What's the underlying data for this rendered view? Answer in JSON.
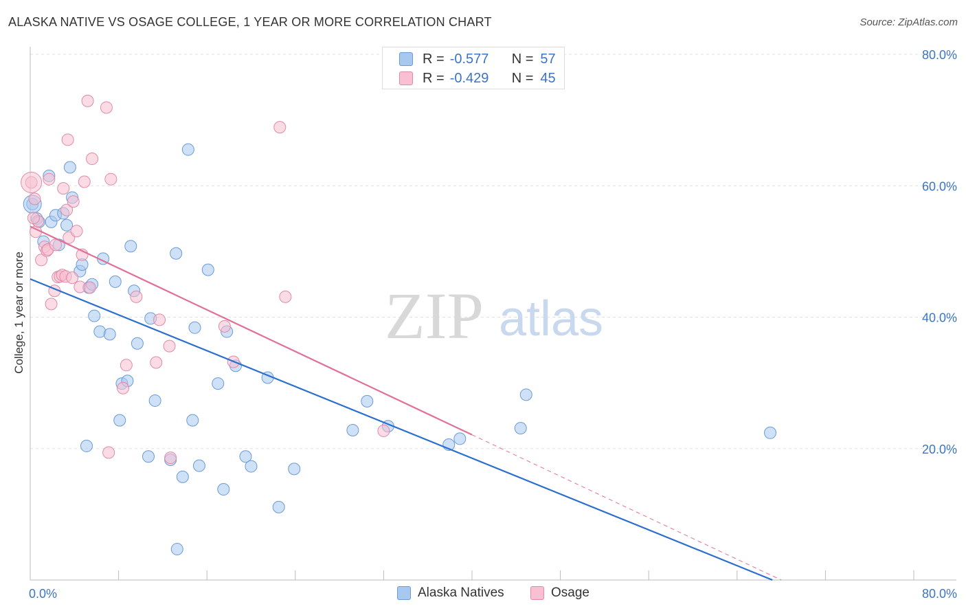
{
  "header": {
    "title": "ALASKA NATIVE VS OSAGE COLLEGE, 1 YEAR OR MORE CORRELATION CHART",
    "source": "Source: ZipAtlas.com"
  },
  "watermark": {
    "zip": "ZIP",
    "atlas": "atlas"
  },
  "legend": {
    "rows": [
      {
        "r_label": "R =",
        "r_value": "-0.577",
        "n_label": "N =",
        "n_value": "57",
        "color": "#a8c8f0",
        "border": "#6a9ad8"
      },
      {
        "r_label": "R =",
        "r_value": "-0.429",
        "n_label": "N =",
        "n_value": "45",
        "color": "#f8c0d0",
        "border": "#e08aa8"
      }
    ]
  },
  "bottom_legend": {
    "items": [
      {
        "label": "Alaska Natives",
        "color": "#a8c8f0",
        "border": "#6a9ad8"
      },
      {
        "label": "Osage",
        "color": "#f8c0d0",
        "border": "#e08aa8"
      }
    ]
  },
  "chart_data": {
    "type": "scatter",
    "title": "ALASKA NATIVE VS OSAGE COLLEGE, 1 YEAR OR MORE CORRELATION CHART",
    "xlabel": "",
    "ylabel": "College, 1 year or more",
    "xlim": [
      0,
      80
    ],
    "ylim": [
      0,
      80
    ],
    "x_tick_labels": [
      "0.0%",
      "80.0%"
    ],
    "y_tick_labels": [
      "20.0%",
      "40.0%",
      "60.0%",
      "80.0%"
    ],
    "y_ticks": [
      20,
      40,
      60,
      80
    ],
    "grid": true,
    "legend_position": "top-center",
    "series": [
      {
        "name": "Alaska Natives",
        "color": "#6a9ad8",
        "fill": "#a8c8f0",
        "trend_color": "#2a6fd0",
        "trend": {
          "x": [
            0,
            67.2
          ],
          "y": [
            45.8,
            0
          ]
        },
        "points": [
          [
            0.2,
            57.2
          ],
          [
            0.6,
            55
          ],
          [
            0.8,
            54.5
          ],
          [
            1.2,
            51.5
          ],
          [
            1.7,
            61.5
          ],
          [
            1.9,
            54.5
          ],
          [
            2.3,
            55.5
          ],
          [
            2.6,
            51
          ],
          [
            3.0,
            55.8
          ],
          [
            3.3,
            54
          ],
          [
            3.6,
            62.8
          ],
          [
            3.8,
            58.2
          ],
          [
            4.5,
            47
          ],
          [
            4.7,
            48
          ],
          [
            5.1,
            20.4
          ],
          [
            5.3,
            44.5
          ],
          [
            5.6,
            45
          ],
          [
            5.8,
            40.2
          ],
          [
            6.3,
            37.8
          ],
          [
            6.6,
            48.9
          ],
          [
            7.2,
            37.4
          ],
          [
            7.7,
            45.4
          ],
          [
            8.1,
            24.3
          ],
          [
            8.3,
            29.9
          ],
          [
            8.8,
            30.3
          ],
          [
            9.1,
            50.8
          ],
          [
            9.4,
            44
          ],
          [
            9.7,
            36
          ],
          [
            10.7,
            18.8
          ],
          [
            10.9,
            39.8
          ],
          [
            11.3,
            27.3
          ],
          [
            12.7,
            18.3
          ],
          [
            13.2,
            49.7
          ],
          [
            13.3,
            4.7
          ],
          [
            13.8,
            15.7
          ],
          [
            14.3,
            65.5
          ],
          [
            14.7,
            24.3
          ],
          [
            14.9,
            38.4
          ],
          [
            15.3,
            17.4
          ],
          [
            16.1,
            47.2
          ],
          [
            17.0,
            29.9
          ],
          [
            17.5,
            13.8
          ],
          [
            17.8,
            37.8
          ],
          [
            18.6,
            32.6
          ],
          [
            19.5,
            18.8
          ],
          [
            20.0,
            17.3
          ],
          [
            21.5,
            30.8
          ],
          [
            22.5,
            11.1
          ],
          [
            23.9,
            16.9
          ],
          [
            29.2,
            22.8
          ],
          [
            30.5,
            27.2
          ],
          [
            32.4,
            23.4
          ],
          [
            37.9,
            20.6
          ],
          [
            38.9,
            21.5
          ],
          [
            44.4,
            23.1
          ],
          [
            44.9,
            28.2
          ],
          [
            67.0,
            22.4
          ]
        ]
      },
      {
        "name": "Osage",
        "color": "#e08aa8",
        "fill": "#f8c0d0",
        "trend_color": "#e07098",
        "trend": {
          "x": [
            0,
            40
          ],
          "y": [
            53.8,
            22.1
          ]
        },
        "trend_dashed": {
          "x": [
            40,
            68
          ],
          "y": [
            22.1,
            0
          ]
        },
        "points": [
          [
            0.1,
            60.5
          ],
          [
            0.4,
            58
          ],
          [
            0.5,
            53
          ],
          [
            0.7,
            54.6
          ],
          [
            1.0,
            48.7
          ],
          [
            1.3,
            50.7
          ],
          [
            1.5,
            50.1
          ],
          [
            1.6,
            50.3
          ],
          [
            1.7,
            61
          ],
          [
            1.9,
            42
          ],
          [
            2.2,
            44
          ],
          [
            2.3,
            51
          ],
          [
            2.5,
            46.1
          ],
          [
            2.7,
            46.2
          ],
          [
            2.9,
            46.4
          ],
          [
            3.0,
            59.6
          ],
          [
            3.2,
            46.2
          ],
          [
            3.3,
            56.3
          ],
          [
            3.4,
            67
          ],
          [
            3.5,
            52.1
          ],
          [
            3.8,
            46
          ],
          [
            3.9,
            57.6
          ],
          [
            4.2,
            53.1
          ],
          [
            4.5,
            44.6
          ],
          [
            4.7,
            49.5
          ],
          [
            4.9,
            60.6
          ],
          [
            5.2,
            72.9
          ],
          [
            5.4,
            44.5
          ],
          [
            5.6,
            64.1
          ],
          [
            6.9,
            71.9
          ],
          [
            7.1,
            19.4
          ],
          [
            7.3,
            61
          ],
          [
            8.4,
            29.2
          ],
          [
            8.7,
            32.7
          ],
          [
            9.6,
            43.1
          ],
          [
            11.4,
            33.1
          ],
          [
            11.7,
            39.6
          ],
          [
            12.6,
            35.6
          ],
          [
            12.7,
            18.6
          ],
          [
            17.6,
            38.6
          ],
          [
            18.4,
            33.2
          ],
          [
            22.6,
            68.9
          ],
          [
            23.1,
            43.1
          ],
          [
            32.0,
            22.7
          ],
          [
            0.3,
            55.1
          ]
        ]
      }
    ]
  }
}
